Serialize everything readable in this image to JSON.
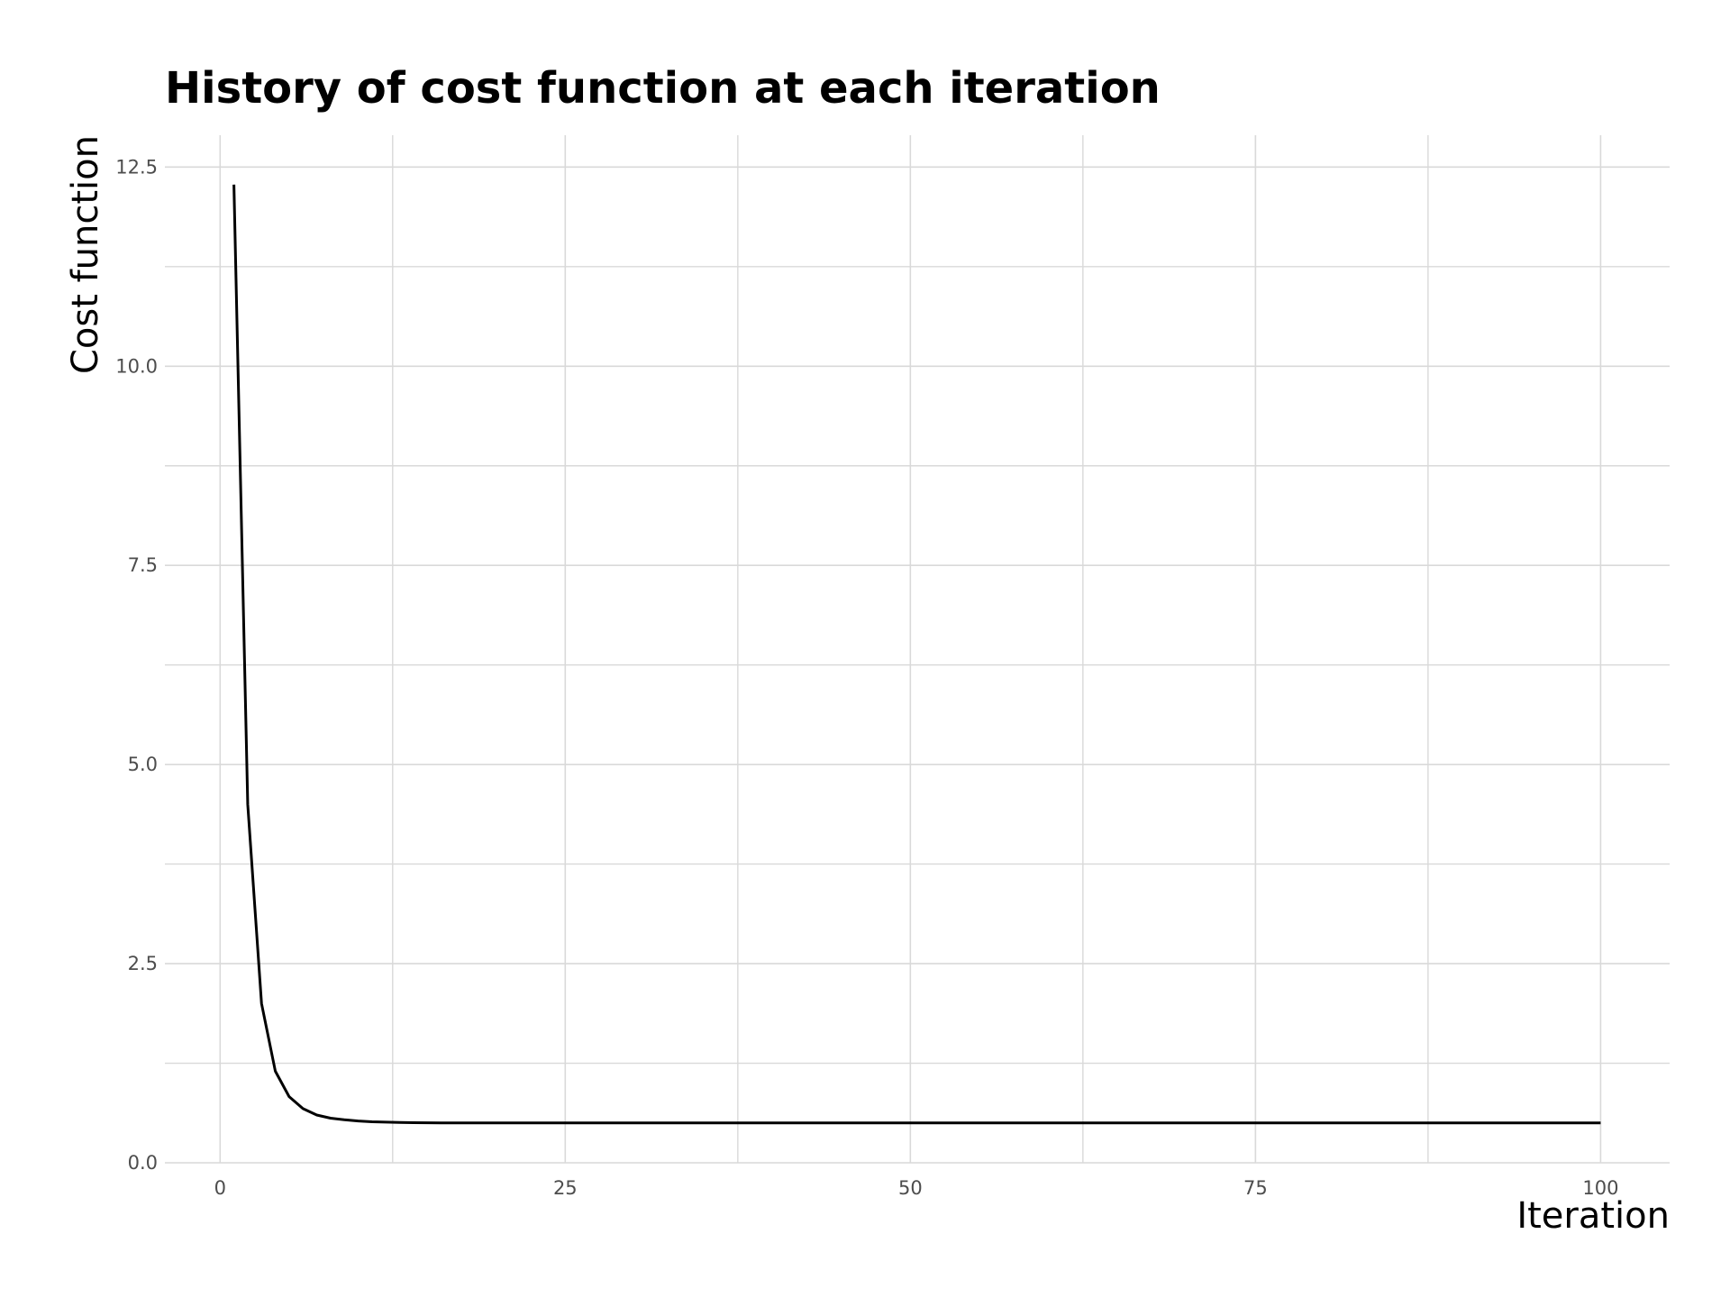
{
  "chart_data": {
    "type": "line",
    "title": "History of cost function at each iteration",
    "xlabel": "Iteration",
    "ylabel": "Cost function",
    "xlim": [
      -4,
      105
    ],
    "ylim": [
      0,
      12.9
    ],
    "x_ticks": [
      0,
      25,
      50,
      75,
      100
    ],
    "x_tick_labels": [
      "0",
      "25",
      "50",
      "75",
      "100"
    ],
    "x_minor_ticks": [
      12.5,
      37.5,
      62.5,
      87.5
    ],
    "y_ticks": [
      0,
      2.5,
      5,
      7.5,
      10,
      12.5
    ],
    "y_tick_labels": [
      "0.0",
      "2.5",
      "5.0",
      "7.5",
      "10.0",
      "12.5"
    ],
    "y_minor_ticks": [
      1.25,
      3.75,
      6.25,
      8.75,
      11.25
    ],
    "grid": true,
    "legend": "none",
    "colors": {
      "line": "#000000",
      "grid": "#d9d9d9",
      "tick_text": "#4d4d4d",
      "title": "#000000"
    },
    "series": [
      {
        "x": [
          1,
          2,
          3,
          4,
          5,
          6,
          7,
          8,
          9,
          10,
          11,
          12,
          13,
          14,
          15,
          16,
          17,
          18,
          19,
          20,
          25,
          30,
          40,
          50,
          60,
          70,
          80,
          90,
          100
        ],
        "values": [
          12.28,
          4.5,
          2.0,
          1.15,
          0.83,
          0.68,
          0.6,
          0.56,
          0.54,
          0.525,
          0.515,
          0.51,
          0.506,
          0.503,
          0.502,
          0.501,
          0.5,
          0.5,
          0.5,
          0.5,
          0.5,
          0.5,
          0.5,
          0.5,
          0.5,
          0.5,
          0.5,
          0.5,
          0.5
        ]
      }
    ]
  }
}
